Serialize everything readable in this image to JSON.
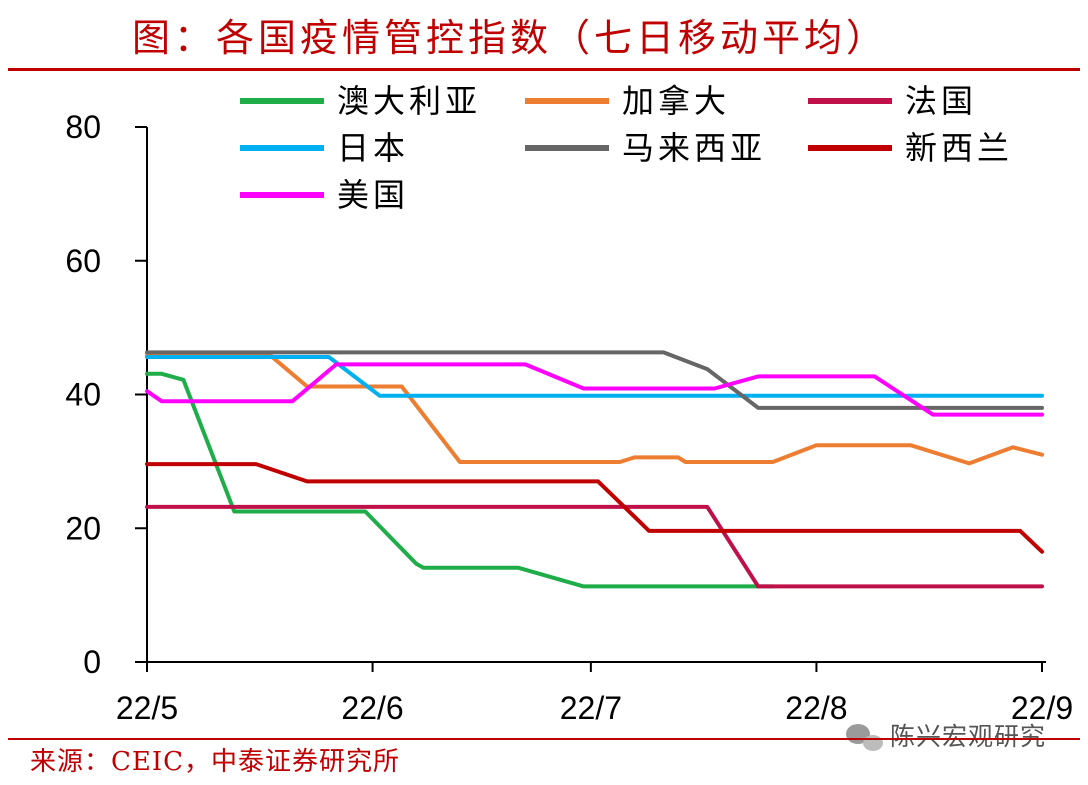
{
  "chart_data": {
    "type": "line",
    "title": "图：各国疫情管控指数（七日移动平均）",
    "source": "来源：CEIC，中泰证券研究所",
    "watermark": "陈兴宏观研究",
    "xlabel": "",
    "ylabel": "",
    "ylim": [
      0,
      80
    ],
    "yticks": [
      "0",
      "20",
      "40",
      "60",
      "80"
    ],
    "xlim": [
      "2022-05-01",
      "2022-09-01"
    ],
    "xticks": [
      {
        "date": "2022-05-01",
        "label": "22/5"
      },
      {
        "date": "2022-06-01",
        "label": "22/6"
      },
      {
        "date": "2022-07-01",
        "label": "22/7"
      },
      {
        "date": "2022-08-01",
        "label": "22/8"
      },
      {
        "date": "2022-09-01",
        "label": "22/9"
      }
    ],
    "grid": false,
    "legend": "top",
    "series": [
      {
        "name": "澳大利亚",
        "color": "#1fad4a",
        "points": [
          [
            "2022-05-01",
            43.1
          ],
          [
            "2022-05-03",
            43.1
          ],
          [
            "2022-05-06",
            42.2
          ],
          [
            "2022-05-13",
            22.5
          ],
          [
            "2022-05-14",
            22.5
          ],
          [
            "2022-05-31",
            22.5
          ],
          [
            "2022-06-07",
            14.7
          ],
          [
            "2022-06-08",
            14.1
          ],
          [
            "2022-06-21",
            14.1
          ],
          [
            "2022-06-30",
            11.3
          ],
          [
            "2022-07-26",
            11.3
          ]
        ]
      },
      {
        "name": "加拿大",
        "color": "#ed7d31",
        "points": [
          [
            "2022-05-01",
            45.8
          ],
          [
            "2022-05-18",
            45.8
          ],
          [
            "2022-05-23",
            41.2
          ],
          [
            "2022-06-05",
            41.2
          ],
          [
            "2022-06-13",
            29.9
          ],
          [
            "2022-07-05",
            29.9
          ],
          [
            "2022-07-07",
            30.6
          ],
          [
            "2022-07-13",
            30.6
          ],
          [
            "2022-07-14",
            29.9
          ],
          [
            "2022-07-26",
            29.9
          ],
          [
            "2022-08-01",
            32.4
          ],
          [
            "2022-08-14",
            32.4
          ],
          [
            "2022-08-22",
            29.7
          ],
          [
            "2022-08-28",
            32.1
          ],
          [
            "2022-09-01",
            31.0
          ]
        ]
      },
      {
        "name": "法国",
        "color": "#c0104a",
        "points": [
          [
            "2022-05-01",
            23.2
          ],
          [
            "2022-07-17",
            23.2
          ],
          [
            "2022-07-24",
            11.3
          ],
          [
            "2022-09-01",
            11.3
          ]
        ]
      },
      {
        "name": "日本",
        "color": "#00b0f0",
        "points": [
          [
            "2022-05-01",
            45.6
          ],
          [
            "2022-05-26",
            45.6
          ],
          [
            "2022-06-02",
            39.8
          ],
          [
            "2022-09-01",
            39.8
          ]
        ]
      },
      {
        "name": "马来西亚",
        "color": "#666666",
        "points": [
          [
            "2022-05-01",
            46.3
          ],
          [
            "2022-07-11",
            46.3
          ],
          [
            "2022-07-17",
            43.8
          ],
          [
            "2022-07-24",
            38.0
          ],
          [
            "2022-09-01",
            38.0
          ]
        ]
      },
      {
        "name": "新西兰",
        "color": "#c00000",
        "points": [
          [
            "2022-05-01",
            29.6
          ],
          [
            "2022-05-16",
            29.6
          ],
          [
            "2022-05-23",
            27.0
          ],
          [
            "2022-07-02",
            27.0
          ],
          [
            "2022-07-09",
            19.6
          ],
          [
            "2022-08-29",
            19.6
          ],
          [
            "2022-09-01",
            16.5
          ]
        ]
      },
      {
        "name": "美国",
        "color": "#ff00ff",
        "points": [
          [
            "2022-05-01",
            40.5
          ],
          [
            "2022-05-03",
            39.0
          ],
          [
            "2022-05-21",
            39.0
          ],
          [
            "2022-05-27",
            44.5
          ],
          [
            "2022-06-22",
            44.5
          ],
          [
            "2022-06-30",
            40.9
          ],
          [
            "2022-07-18",
            40.9
          ],
          [
            "2022-07-24",
            42.7
          ],
          [
            "2022-08-09",
            42.7
          ],
          [
            "2022-08-17",
            37.0
          ],
          [
            "2022-09-01",
            37.0
          ]
        ]
      }
    ]
  }
}
